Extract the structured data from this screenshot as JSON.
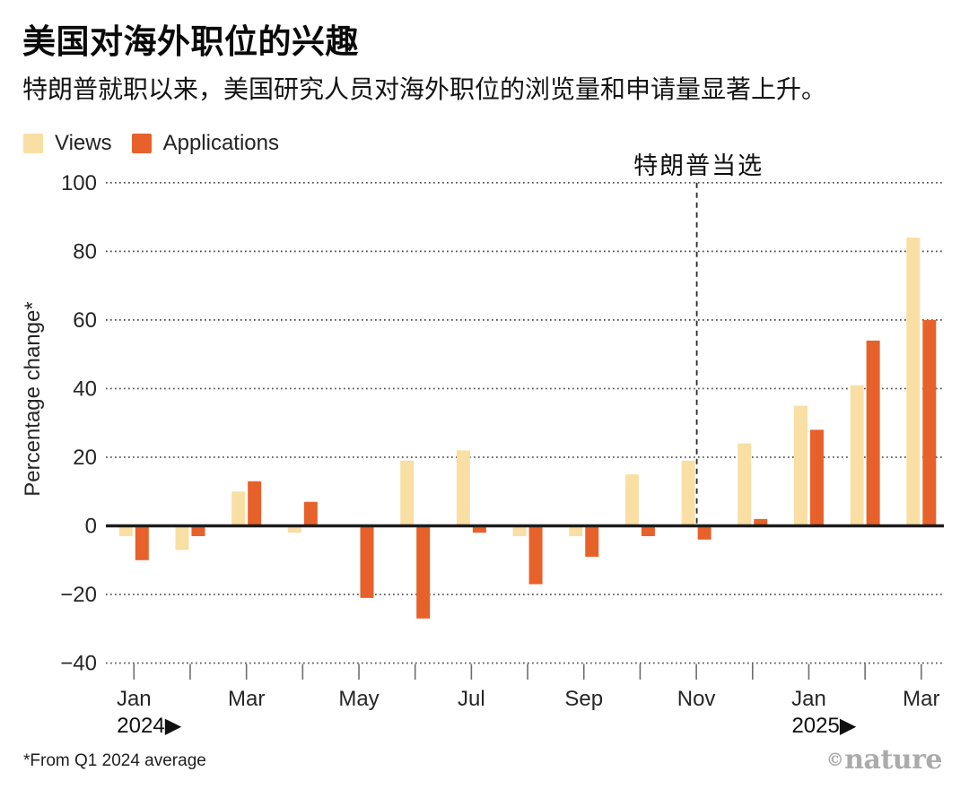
{
  "header": {
    "title": "美国对海外职位的兴趣",
    "subtitle": "特朗普就职以来，美国研究人员对海外职位的浏览量和申请量显著上升。"
  },
  "chart_data": {
    "type": "bar",
    "title": "美国对海外职位的兴趣",
    "categories": [
      "Jan 2024",
      "Feb 2024",
      "Mar 2024",
      "Apr 2024",
      "May 2024",
      "Jun 2024",
      "Jul 2024",
      "Aug 2024",
      "Sep 2024",
      "Oct 2024",
      "Nov 2024",
      "Dec 2024",
      "Jan 2025",
      "Feb 2025",
      "Mar 2025"
    ],
    "series": [
      {
        "name": "Views",
        "color": "#F9DFA4",
        "values": [
          -3,
          -7,
          10,
          -2,
          0,
          19,
          22,
          -3,
          -3,
          15,
          19,
          24,
          35,
          41,
          84
        ]
      },
      {
        "name": "Applications",
        "color": "#E7612B",
        "values": [
          -10,
          -3,
          13,
          7,
          -21,
          -27,
          -2,
          -17,
          -9,
          -3,
          -4,
          2,
          28,
          54,
          60
        ]
      }
    ],
    "xlabel": "",
    "ylabel": "Percentage change*",
    "ylim": [
      -40,
      100
    ],
    "yticks": [
      {
        "value": 100,
        "label": "100"
      },
      {
        "value": 80,
        "label": "80"
      },
      {
        "value": 60,
        "label": "60"
      },
      {
        "value": 40,
        "label": "40"
      },
      {
        "value": 20,
        "label": "20"
      },
      {
        "value": 0,
        "label": "0"
      },
      {
        "value": -20,
        "label": "−20"
      },
      {
        "value": -40,
        "label": "−40"
      }
    ],
    "x_axis": {
      "labeled_ticks": [
        {
          "index": 0,
          "label": "Jan"
        },
        {
          "index": 2,
          "label": "Mar"
        },
        {
          "index": 4,
          "label": "May"
        },
        {
          "index": 6,
          "label": "Jul"
        },
        {
          "index": 8,
          "label": "Sep"
        },
        {
          "index": 10,
          "label": "Nov"
        },
        {
          "index": 12,
          "label": "Jan"
        },
        {
          "index": 14,
          "label": "Mar"
        }
      ],
      "year_markers": [
        {
          "index": 0,
          "label": "2024",
          "arrow": "▶"
        },
        {
          "index": 12,
          "label": "2025",
          "arrow": "▶"
        }
      ]
    },
    "annotation": {
      "label": "特朗普当选",
      "at_index": 10
    },
    "grid": "dotted-horizontal",
    "legend_position": "top-left"
  },
  "footer": {
    "note": "*From Q1 2024 average",
    "credit_symbol": "©",
    "credit_name": "nature"
  }
}
